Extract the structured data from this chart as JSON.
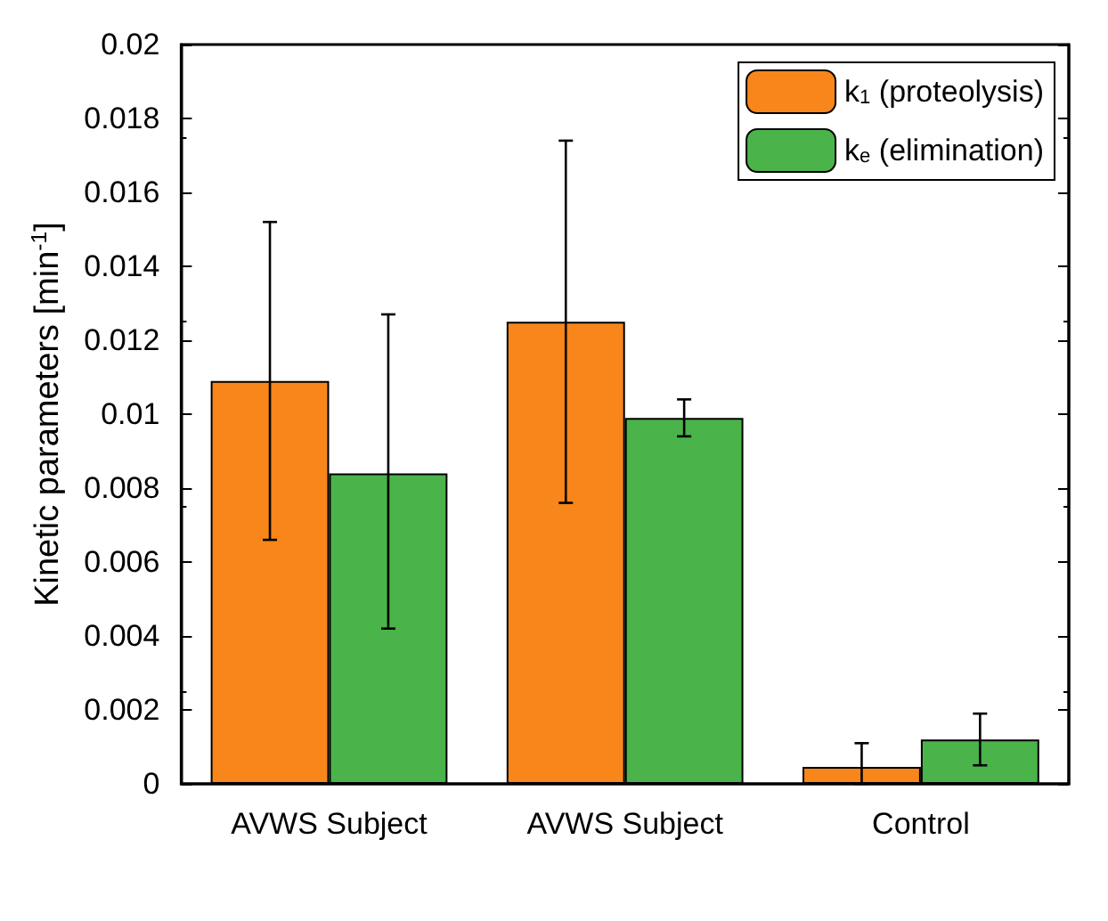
{
  "chart_data": {
    "type": "bar",
    "categories": [
      "AVWS Subject",
      "AVWS Subject",
      "Control"
    ],
    "ylabel": "Kinetic parameters [min$^{-1}$]",
    "ylim": [
      0,
      0.02
    ],
    "yticks": [
      0,
      0.002,
      0.004,
      0.006,
      0.008,
      0.01,
      0.012,
      0.014,
      0.016,
      0.018,
      0.02
    ],
    "grid": false,
    "legend": "top right",
    "series": [
      {
        "name": "k$_{1}$ (proteolysis)",
        "color": "#f8861a",
        "values": [
          0.0109,
          0.0125,
          0.00046
        ],
        "errors": [
          [
            0.0066,
            0.0152
          ],
          [
            0.0076,
            0.0174
          ],
          [
            0,
            0.0011
          ]
        ]
      },
      {
        "name": "k$_{e}$ (elimination)",
        "color": "#4ab34a",
        "values": [
          0.0084,
          0.0099,
          0.0012
        ],
        "errors": [
          [
            0.0042,
            0.0127
          ],
          [
            0.0094,
            0.0104
          ],
          [
            0.0005,
            0.0019
          ]
        ]
      }
    ]
  }
}
